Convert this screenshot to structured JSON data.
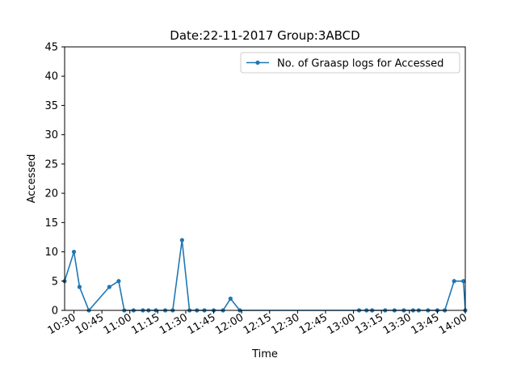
{
  "chart_data": {
    "type": "line",
    "title": "Date:22-11-2017  Group:3ABCD",
    "xlabel": "Time",
    "ylabel": "Accessed",
    "ylim": [
      0,
      45
    ],
    "yticks": [
      0,
      5,
      10,
      15,
      20,
      25,
      30,
      35,
      40,
      45
    ],
    "xlim": [
      "10:25",
      "14:00"
    ],
    "xticks": [
      "10:30",
      "10:45",
      "11:00",
      "11:15",
      "11:30",
      "11:45",
      "12:00",
      "12:15",
      "12:30",
      "12:45",
      "13:00",
      "13:15",
      "13:30",
      "13:45",
      "14:00"
    ],
    "grid": false,
    "legend_position": "top-right",
    "series": [
      {
        "name": "No. of Graasp logs for Accessed",
        "color": "#1f77b4",
        "marker": "circle",
        "x": [
          "10:25",
          "10:30",
          "10:33",
          "10:38",
          "10:49",
          "10:54",
          "10:57",
          "11:02",
          "11:07",
          "11:10",
          "11:14",
          "11:19",
          "11:23",
          "11:28",
          "11:32",
          "11:36",
          "11:40",
          "11:45",
          "11:50",
          "11:54",
          "11:59",
          "13:03",
          "13:07",
          "13:10",
          "13:17",
          "13:22",
          "13:27",
          "13:32",
          "13:35",
          "13:40",
          "13:45",
          "13:49",
          "13:54",
          "13:59",
          "14:00"
        ],
        "values": [
          5,
          10,
          4,
          0,
          4,
          5,
          0,
          0,
          0,
          0,
          0,
          0,
          0,
          12,
          0,
          0,
          0,
          0,
          0,
          2,
          0,
          0,
          0,
          0,
          0,
          0,
          0,
          0,
          0,
          0,
          0,
          0,
          5,
          5,
          0
        ]
      }
    ],
    "reference_lines": [
      {
        "value": 0,
        "color": "#000000",
        "style": "dashed"
      },
      {
        "value": 0,
        "color": "#d62728",
        "style": "dotted"
      }
    ]
  }
}
